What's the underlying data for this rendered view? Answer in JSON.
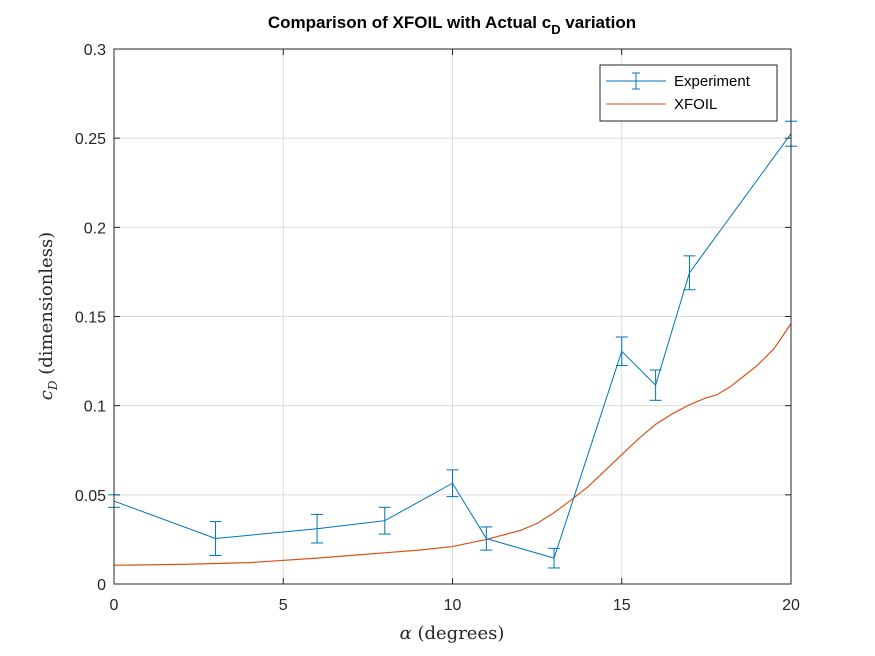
{
  "chart_data": {
    "type": "line",
    "title": "Comparison of XFOIL with Actual c",
    "title_subscript": "D",
    "title_suffix": " variation",
    "xlabel_symbol": "α",
    "xlabel_text": " (degrees)",
    "ylabel_symbol": "c",
    "ylabel_subscript": "D",
    "ylabel_text": " (dimensionless)",
    "xlim": [
      0,
      20
    ],
    "ylim": [
      0,
      0.3
    ],
    "xticks": [
      0,
      5,
      10,
      15,
      20
    ],
    "xtick_labels": [
      "0",
      "5",
      "10",
      "15",
      "20"
    ],
    "yticks": [
      0,
      0.05,
      0.1,
      0.15,
      0.2,
      0.25,
      0.3
    ],
    "ytick_labels": [
      "0",
      "0.05",
      "0.1",
      "0.15",
      "0.2",
      "0.25",
      "0.3"
    ],
    "grid": true,
    "legend_position": "top-right",
    "series": [
      {
        "name": "Experiment",
        "color": "#0072BD",
        "style": "errorbar-line",
        "x": [
          0,
          3,
          6,
          8,
          10,
          11,
          13,
          15,
          16,
          17,
          20
        ],
        "y": [
          0.0465,
          0.0255,
          0.031,
          0.0355,
          0.0565,
          0.0255,
          0.0145,
          0.1305,
          0.1115,
          0.1745,
          0.2525
        ],
        "err": [
          0.0035,
          0.0095,
          0.008,
          0.0075,
          0.0075,
          0.0065,
          0.0055,
          0.008,
          0.0085,
          0.0095,
          0.007
        ]
      },
      {
        "name": "XFOIL",
        "color": "#D95319",
        "style": "line",
        "x": [
          0,
          2,
          4,
          6,
          8,
          9,
          10,
          11,
          12,
          12.5,
          13,
          13.5,
          14,
          14.5,
          15,
          15.5,
          16,
          16.5,
          17,
          17.5,
          17.8,
          18.2,
          18.6,
          19,
          19.5,
          20
        ],
        "y": [
          0.0105,
          0.011,
          0.012,
          0.0145,
          0.0175,
          0.019,
          0.021,
          0.025,
          0.03,
          0.034,
          0.04,
          0.047,
          0.0545,
          0.0635,
          0.0725,
          0.0815,
          0.0895,
          0.0955,
          0.1005,
          0.1045,
          0.106,
          0.1105,
          0.1165,
          0.1225,
          0.132,
          0.146
        ]
      }
    ]
  }
}
